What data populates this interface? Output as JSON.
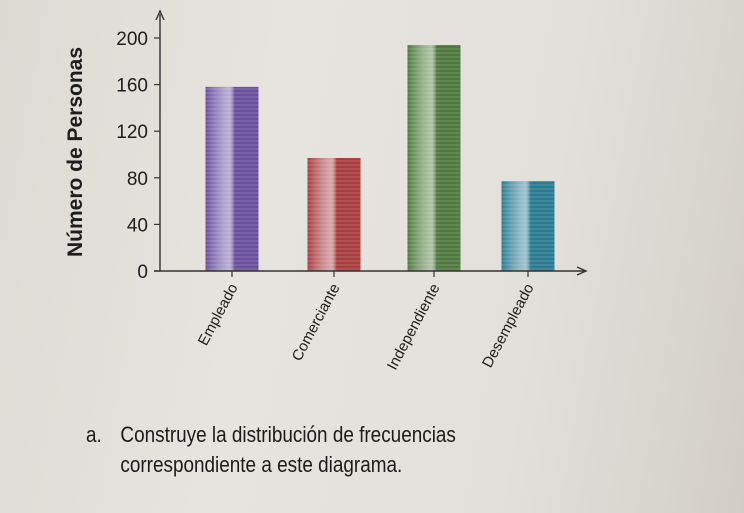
{
  "chart_data": {
    "type": "bar",
    "categories": [
      "Empleado",
      "Comerciante",
      "Independiente",
      "Desempleado"
    ],
    "values": [
      158,
      97,
      194,
      77
    ],
    "colors": [
      "#6a4f9e",
      "#a83d3f",
      "#4f7a3e",
      "#2b7b92"
    ],
    "ylabel": "Número de Personas",
    "xlabel": "",
    "ylim": [
      0,
      200
    ],
    "yticks": [
      0,
      40,
      80,
      120,
      160,
      200
    ],
    "grid": false
  },
  "caption": {
    "marker": "a.",
    "line1": "Construye la distribución de frecuencias",
    "line2": "correspondiente a este diagrama."
  }
}
